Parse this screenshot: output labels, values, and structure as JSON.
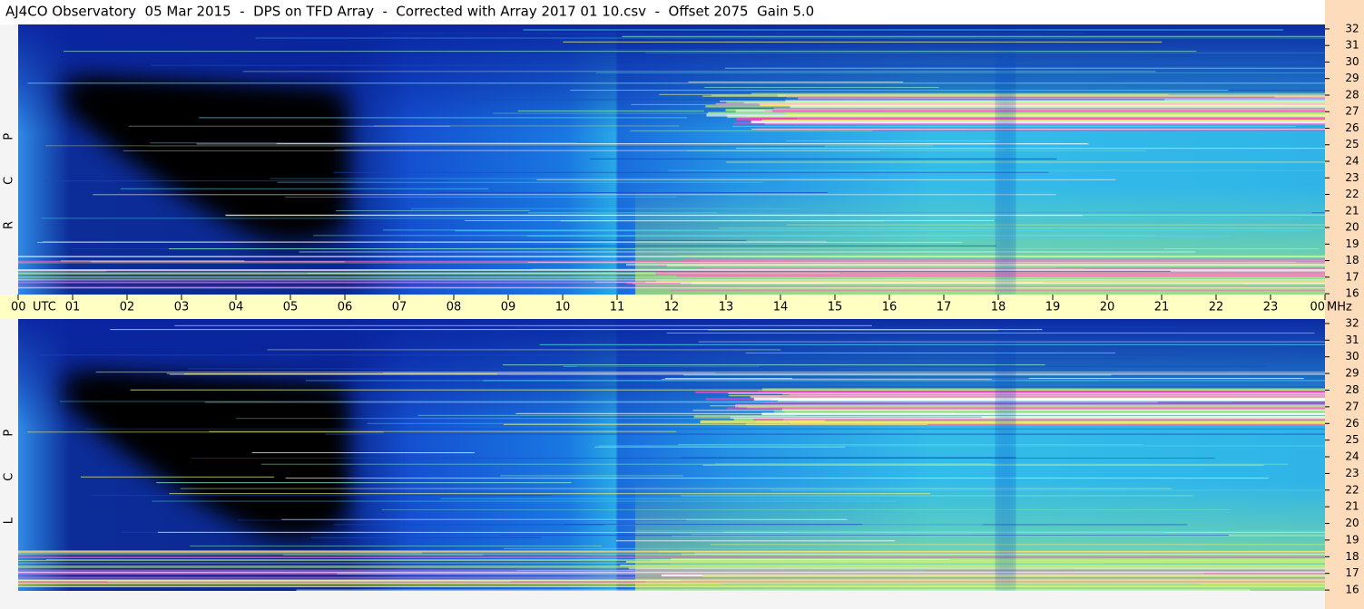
{
  "chart_data": {
    "type": "spectrogram",
    "title": "AJ4CO Observatory  05 Mar 2015  -  DPS on TFD Array  -  Corrected with Array 2017 01 10.csv  -  Offset 2075  Gain 5.0",
    "x_label": "UTC",
    "y_label": "MHz",
    "panels": [
      {
        "name": "R C P"
      },
      {
        "name": "L C P"
      }
    ],
    "xlim": [
      0,
      24
    ],
    "xticks": [
      {
        "value": 0,
        "label": "00"
      },
      {
        "value": 1,
        "label": "01"
      },
      {
        "value": 2,
        "label": "02"
      },
      {
        "value": 3,
        "label": "03"
      },
      {
        "value": 4,
        "label": "04"
      },
      {
        "value": 5,
        "label": "05"
      },
      {
        "value": 6,
        "label": "06"
      },
      {
        "value": 7,
        "label": "07"
      },
      {
        "value": 8,
        "label": "08"
      },
      {
        "value": 9,
        "label": "09"
      },
      10,
      11,
      12,
      13,
      14,
      15,
      16,
      17,
      18,
      19,
      20,
      21,
      22,
      23,
      {
        "value": 24,
        "label": "00"
      }
    ],
    "ylim": [
      15.95,
      32.27
    ],
    "yticks": [
      16,
      17,
      18,
      19,
      20,
      21,
      22,
      23,
      24,
      25,
      26,
      27,
      28,
      29,
      30,
      31,
      32
    ]
  }
}
